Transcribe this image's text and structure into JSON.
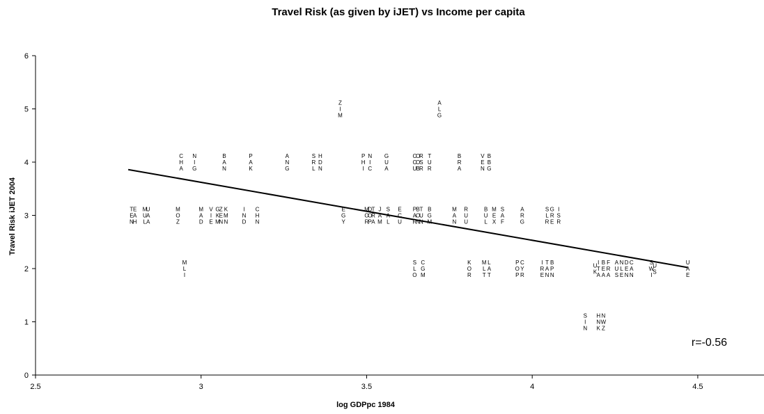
{
  "chart_data": {
    "type": "scatter",
    "title": "Travel Risk (as given by iJET) vs Income per capita",
    "xlabel": "log GDPpc 1984",
    "ylabel": "Travel Risk iJET 2004",
    "xlim": [
      2.5,
      4.7
    ],
    "ylim": [
      0,
      6
    ],
    "x_ticks": [
      2.5,
      3,
      3.5,
      4,
      4.5
    ],
    "y_ticks": [
      0,
      1,
      2,
      3,
      4,
      5,
      6
    ],
    "x_tick_labels": [
      "2.5",
      "3",
      "3.5",
      "4",
      "4.5"
    ],
    "y_tick_labels": [
      "0",
      "1",
      "2",
      "3",
      "4",
      "5",
      "6"
    ],
    "grid": false,
    "legend": "none",
    "annotation": "r=-0.56",
    "trendline": {
      "x": [
        2.78,
        4.47
      ],
      "y": [
        3.86,
        2.02
      ]
    },
    "points": [
      {
        "label": "ZIM",
        "x": 3.42,
        "y": 5
      },
      {
        "label": "ALG",
        "x": 3.72,
        "y": 5
      },
      {
        "label": "CHA",
        "x": 2.94,
        "y": 4
      },
      {
        "label": "NIG",
        "x": 2.98,
        "y": 4
      },
      {
        "label": "BAN",
        "x": 3.07,
        "y": 4
      },
      {
        "label": "PAK",
        "x": 3.15,
        "y": 4
      },
      {
        "label": "ANG",
        "x": 3.26,
        "y": 4
      },
      {
        "label": "SRL",
        "x": 3.34,
        "y": 4
      },
      {
        "label": "HDN",
        "x": 3.36,
        "y": 4
      },
      {
        "label": "PHI",
        "x": 3.49,
        "y": 4
      },
      {
        "label": "NIC",
        "x": 3.51,
        "y": 4
      },
      {
        "label": "GUA",
        "x": 3.56,
        "y": 4
      },
      {
        "label": "CCU",
        "x": 3.645,
        "y": 4
      },
      {
        "label": "OOB",
        "x": 3.655,
        "y": 4
      },
      {
        "label": "RSR",
        "x": 3.665,
        "y": 4
      },
      {
        "label": "TUR",
        "x": 3.69,
        "y": 4
      },
      {
        "label": "BRA",
        "x": 3.78,
        "y": 4
      },
      {
        "label": "VEN",
        "x": 3.85,
        "y": 4
      },
      {
        "label": "BBG",
        "x": 3.87,
        "y": 4
      },
      {
        "label": "TEN",
        "x": 2.79,
        "y": 3
      },
      {
        "label": "EAH",
        "x": 2.8,
        "y": 3
      },
      {
        "label": "MUL",
        "x": 2.83,
        "y": 3
      },
      {
        "label": "UAA",
        "x": 2.84,
        "y": 3
      },
      {
        "label": "MOZ",
        "x": 2.93,
        "y": 3
      },
      {
        "label": "MAD",
        "x": 3.0,
        "y": 3
      },
      {
        "label": "VIE",
        "x": 3.03,
        "y": 3
      },
      {
        "label": "GKM",
        "x": 3.05,
        "y": 3
      },
      {
        "label": "ZEN",
        "x": 3.06,
        "y": 3
      },
      {
        "label": "KMN",
        "x": 3.075,
        "y": 3
      },
      {
        "label": "IND",
        "x": 3.13,
        "y": 3
      },
      {
        "label": "CHN",
        "x": 3.17,
        "y": 3
      },
      {
        "label": "EGY",
        "x": 3.43,
        "y": 3
      },
      {
        "label": "MOR",
        "x": 3.5,
        "y": 3
      },
      {
        "label": "DOP",
        "x": 3.51,
        "y": 3
      },
      {
        "label": "TRA",
        "x": 3.52,
        "y": 3
      },
      {
        "label": "JAM",
        "x": 3.54,
        "y": 3
      },
      {
        "label": "SAL",
        "x": 3.565,
        "y": 3
      },
      {
        "label": "ECU",
        "x": 3.6,
        "y": 3
      },
      {
        "label": "PAR",
        "x": 3.645,
        "y": 3
      },
      {
        "label": "BON",
        "x": 3.655,
        "y": 3
      },
      {
        "label": "TUN",
        "x": 3.665,
        "y": 3
      },
      {
        "label": "BGM",
        "x": 3.69,
        "y": 3
      },
      {
        "label": "MAN",
        "x": 3.765,
        "y": 3
      },
      {
        "label": "RUU",
        "x": 3.8,
        "y": 3
      },
      {
        "label": "BUL",
        "x": 3.86,
        "y": 3
      },
      {
        "label": "MEX",
        "x": 3.885,
        "y": 3
      },
      {
        "label": "SAF",
        "x": 3.91,
        "y": 3
      },
      {
        "label": "ARG",
        "x": 3.97,
        "y": 3
      },
      {
        "label": "SLR",
        "x": 4.045,
        "y": 3
      },
      {
        "label": "GRE",
        "x": 4.06,
        "y": 3
      },
      {
        "label": "ISR",
        "x": 4.08,
        "y": 3
      },
      {
        "label": "MLI",
        "x": 2.95,
        "y": 2
      },
      {
        "label": "SLO",
        "x": 3.645,
        "y": 2
      },
      {
        "label": "CGM",
        "x": 3.67,
        "y": 2
      },
      {
        "label": "KOR",
        "x": 3.81,
        "y": 2
      },
      {
        "label": "MLT",
        "x": 3.855,
        "y": 2
      },
      {
        "label": "LAT",
        "x": 3.87,
        "y": 2
      },
      {
        "label": "POP",
        "x": 3.955,
        "y": 2
      },
      {
        "label": "CYR",
        "x": 3.97,
        "y": 2
      },
      {
        "label": "IRE",
        "x": 4.03,
        "y": 2
      },
      {
        "label": "TAN",
        "x": 4.045,
        "y": 2
      },
      {
        "label": "BPN",
        "x": 4.06,
        "y": 2
      },
      {
        "label": "UK",
        "x": 4.19,
        "y": 2
      },
      {
        "label": "ITA",
        "x": 4.2,
        "y": 2
      },
      {
        "label": "BEA",
        "x": 4.215,
        "y": 2
      },
      {
        "label": "FRA",
        "x": 4.23,
        "y": 2
      },
      {
        "label": "AUS",
        "x": 4.255,
        "y": 2
      },
      {
        "label": "NLE",
        "x": 4.27,
        "y": 2
      },
      {
        "label": "DEN",
        "x": 4.285,
        "y": 2
      },
      {
        "label": "CAN",
        "x": 4.3,
        "y": 2
      },
      {
        "label": "SWI",
        "x": 4.36,
        "y": 2
      },
      {
        "label": "US",
        "x": 4.37,
        "y": 2
      },
      {
        "label": "UAE",
        "x": 4.47,
        "y": 2
      },
      {
        "label": "SIN",
        "x": 4.16,
        "y": 1
      },
      {
        "label": "HNK",
        "x": 4.2,
        "y": 1
      },
      {
        "label": "NWZ",
        "x": 4.215,
        "y": 1
      }
    ]
  }
}
